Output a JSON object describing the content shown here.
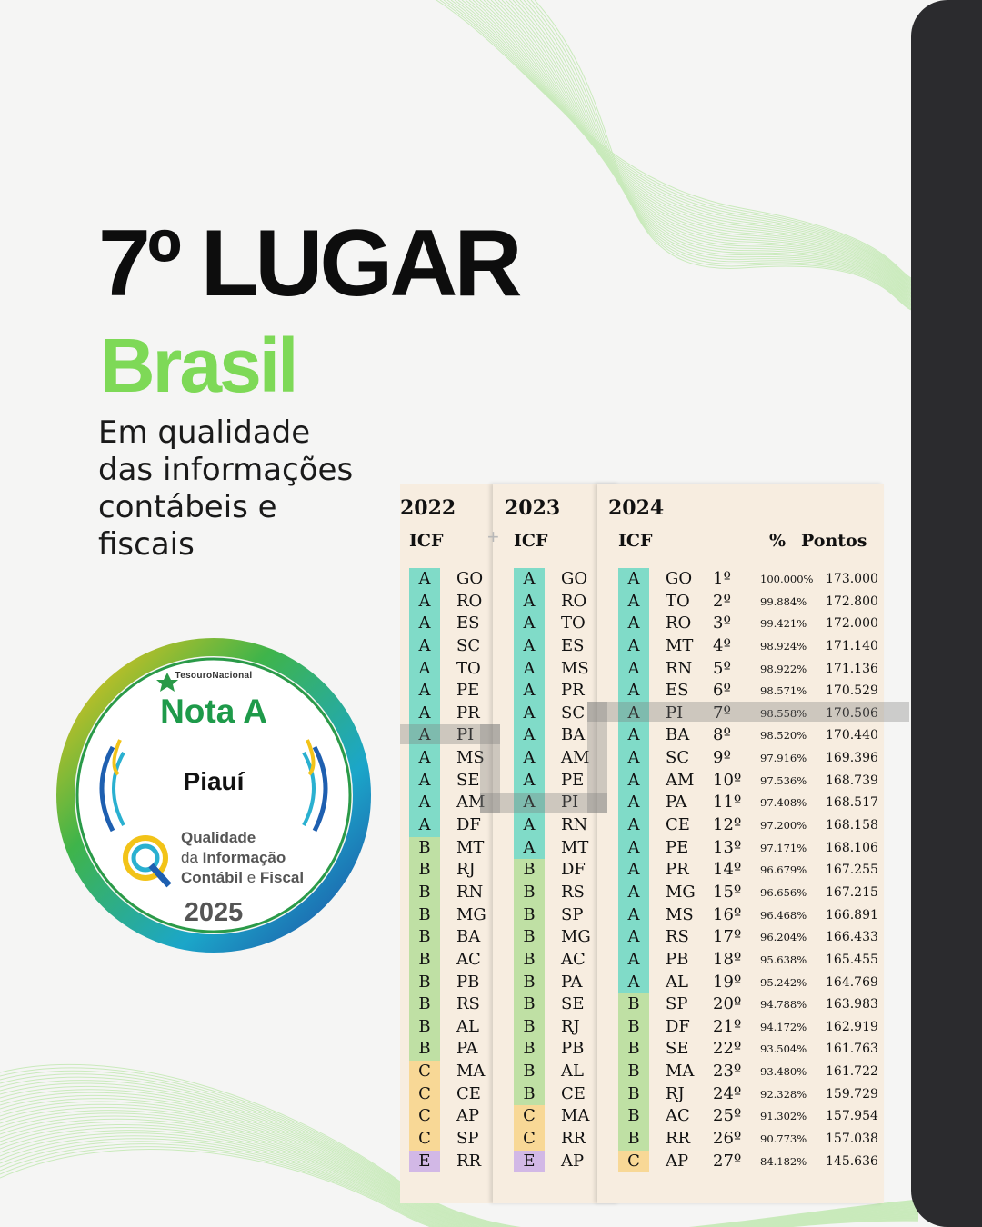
{
  "headline": "7º LUGAR",
  "subheadline": "Brasil",
  "description": [
    "Em qualidade",
    "das informações",
    "contábeis e",
    "fiscais"
  ],
  "badge": {
    "issuer": "TesouroNacional",
    "grade": "Nota A",
    "state": "Piauí",
    "program_line1": "Qualidade",
    "program_line2_a": "da ",
    "program_line2_b": "Informação",
    "program_line3_a": "Contábil",
    "program_line3_b": " e ",
    "program_line3_c": "Fiscal",
    "year": "2025"
  },
  "colors": {
    "accent_green": "#7ed957",
    "grade_A": "#80dbc8",
    "grade_B": "#bfe0a4",
    "grade_C": "#f8d896",
    "grade_E": "#d2b8e6"
  },
  "tables": {
    "t2022": {
      "year": "2022",
      "header": "ICF",
      "rows": [
        {
          "g": "A",
          "s": "GO"
        },
        {
          "g": "A",
          "s": "RO"
        },
        {
          "g": "A",
          "s": "ES"
        },
        {
          "g": "A",
          "s": "SC"
        },
        {
          "g": "A",
          "s": "TO"
        },
        {
          "g": "A",
          "s": "PE"
        },
        {
          "g": "A",
          "s": "PR"
        },
        {
          "g": "A",
          "s": "PI"
        },
        {
          "g": "A",
          "s": "MS"
        },
        {
          "g": "A",
          "s": "SE"
        },
        {
          "g": "A",
          "s": "AM"
        },
        {
          "g": "A",
          "s": "DF"
        },
        {
          "g": "B",
          "s": "MT"
        },
        {
          "g": "B",
          "s": "RJ"
        },
        {
          "g": "B",
          "s": "RN"
        },
        {
          "g": "B",
          "s": "MG"
        },
        {
          "g": "B",
          "s": "BA"
        },
        {
          "g": "B",
          "s": "AC"
        },
        {
          "g": "B",
          "s": "PB"
        },
        {
          "g": "B",
          "s": "RS"
        },
        {
          "g": "B",
          "s": "AL"
        },
        {
          "g": "B",
          "s": "PA"
        },
        {
          "g": "C",
          "s": "MA"
        },
        {
          "g": "C",
          "s": "CE"
        },
        {
          "g": "C",
          "s": "AP"
        },
        {
          "g": "C",
          "s": "SP"
        },
        {
          "g": "E",
          "s": "RR"
        }
      ]
    },
    "t2023": {
      "year": "2023",
      "header": "ICF",
      "rows": [
        {
          "g": "A",
          "s": "GO"
        },
        {
          "g": "A",
          "s": "RO"
        },
        {
          "g": "A",
          "s": "TO"
        },
        {
          "g": "A",
          "s": "ES"
        },
        {
          "g": "A",
          "s": "MS"
        },
        {
          "g": "A",
          "s": "PR"
        },
        {
          "g": "A",
          "s": "SC"
        },
        {
          "g": "A",
          "s": "BA"
        },
        {
          "g": "A",
          "s": "AM"
        },
        {
          "g": "A",
          "s": "PE"
        },
        {
          "g": "A",
          "s": "PI"
        },
        {
          "g": "A",
          "s": "RN"
        },
        {
          "g": "A",
          "s": "MT"
        },
        {
          "g": "B",
          "s": "DF"
        },
        {
          "g": "B",
          "s": "RS"
        },
        {
          "g": "B",
          "s": "SP"
        },
        {
          "g": "B",
          "s": "MG"
        },
        {
          "g": "B",
          "s": "AC"
        },
        {
          "g": "B",
          "s": "PA"
        },
        {
          "g": "B",
          "s": "SE"
        },
        {
          "g": "B",
          "s": "RJ"
        },
        {
          "g": "B",
          "s": "PB"
        },
        {
          "g": "B",
          "s": "AL"
        },
        {
          "g": "B",
          "s": "CE"
        },
        {
          "g": "C",
          "s": "MA"
        },
        {
          "g": "C",
          "s": "RR"
        },
        {
          "g": "E",
          "s": "AP"
        }
      ]
    },
    "t2024": {
      "year": "2024",
      "header": "ICF",
      "pct_header": "%",
      "pts_header": "Pontos",
      "rows": [
        {
          "g": "A",
          "s": "GO",
          "r": "1º",
          "p": "100.000%",
          "pt": "173.000"
        },
        {
          "g": "A",
          "s": "TO",
          "r": "2º",
          "p": "99.884%",
          "pt": "172.800"
        },
        {
          "g": "A",
          "s": "RO",
          "r": "3º",
          "p": "99.421%",
          "pt": "172.000"
        },
        {
          "g": "A",
          "s": "MT",
          "r": "4º",
          "p": "98.924%",
          "pt": "171.140"
        },
        {
          "g": "A",
          "s": "RN",
          "r": "5º",
          "p": "98.922%",
          "pt": "171.136"
        },
        {
          "g": "A",
          "s": "ES",
          "r": "6º",
          "p": "98.571%",
          "pt": "170.529"
        },
        {
          "g": "A",
          "s": "PI",
          "r": "7º",
          "p": "98.558%",
          "pt": "170.506"
        },
        {
          "g": "A",
          "s": "BA",
          "r": "8º",
          "p": "98.520%",
          "pt": "170.440"
        },
        {
          "g": "A",
          "s": "SC",
          "r": "9º",
          "p": "97.916%",
          "pt": "169.396"
        },
        {
          "g": "A",
          "s": "AM",
          "r": "10º",
          "p": "97.536%",
          "pt": "168.739"
        },
        {
          "g": "A",
          "s": "PA",
          "r": "11º",
          "p": "97.408%",
          "pt": "168.517"
        },
        {
          "g": "A",
          "s": "CE",
          "r": "12º",
          "p": "97.200%",
          "pt": "168.158"
        },
        {
          "g": "A",
          "s": "PE",
          "r": "13º",
          "p": "97.171%",
          "pt": "168.106"
        },
        {
          "g": "A",
          "s": "PR",
          "r": "14º",
          "p": "96.679%",
          "pt": "167.255"
        },
        {
          "g": "A",
          "s": "MG",
          "r": "15º",
          "p": "96.656%",
          "pt": "167.215"
        },
        {
          "g": "A",
          "s": "MS",
          "r": "16º",
          "p": "96.468%",
          "pt": "166.891"
        },
        {
          "g": "A",
          "s": "RS",
          "r": "17º",
          "p": "96.204%",
          "pt": "166.433"
        },
        {
          "g": "A",
          "s": "PB",
          "r": "18º",
          "p": "95.638%",
          "pt": "165.455"
        },
        {
          "g": "A",
          "s": "AL",
          "r": "19º",
          "p": "95.242%",
          "pt": "164.769"
        },
        {
          "g": "B",
          "s": "SP",
          "r": "20º",
          "p": "94.788%",
          "pt": "163.983"
        },
        {
          "g": "B",
          "s": "DF",
          "r": "21º",
          "p": "94.172%",
          "pt": "162.919"
        },
        {
          "g": "B",
          "s": "SE",
          "r": "22º",
          "p": "93.504%",
          "pt": "161.763"
        },
        {
          "g": "B",
          "s": "MA",
          "r": "23º",
          "p": "93.480%",
          "pt": "161.722"
        },
        {
          "g": "B",
          "s": "RJ",
          "r": "24º",
          "p": "92.328%",
          "pt": "159.729"
        },
        {
          "g": "B",
          "s": "AC",
          "r": "25º",
          "p": "91.302%",
          "pt": "157.954"
        },
        {
          "g": "B",
          "s": "RR",
          "r": "26º",
          "p": "90.773%",
          "pt": "157.038"
        },
        {
          "g": "C",
          "s": "AP",
          "r": "27º",
          "p": "84.182%",
          "pt": "145.636"
        }
      ]
    }
  }
}
